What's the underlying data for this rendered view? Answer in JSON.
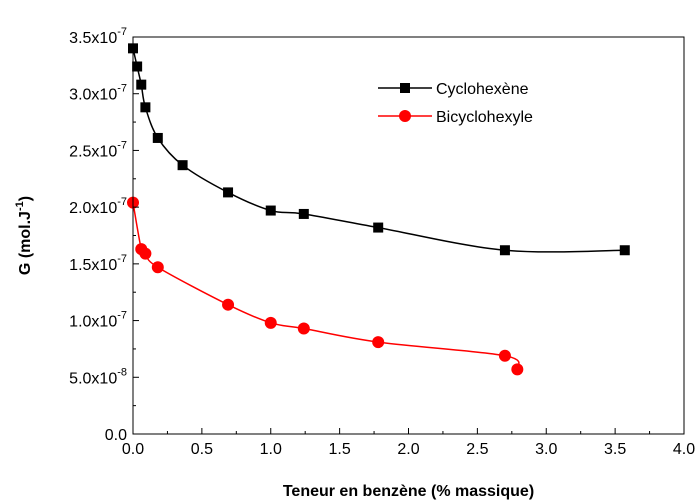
{
  "chart_data": {
    "type": "scatter",
    "xlabel": "Teneur en benzène (% massique)",
    "ylabel_main": "G (mol.J",
    "ylabel_sup": "-1",
    "ylabel_end": ")",
    "xlim": [
      0.0,
      4.0
    ],
    "ylim": [
      0.0,
      3.5e-07
    ],
    "x_ticks": [
      {
        "value": 0.0,
        "label": "0.0"
      },
      {
        "value": 0.5,
        "label": "0.5"
      },
      {
        "value": 1.0,
        "label": "1.0"
      },
      {
        "value": 1.5,
        "label": "1.5"
      },
      {
        "value": 2.0,
        "label": "2.0"
      },
      {
        "value": 2.5,
        "label": "2.5"
      },
      {
        "value": 3.0,
        "label": "3.0"
      },
      {
        "value": 3.5,
        "label": "3.5"
      },
      {
        "value": 4.0,
        "label": "4.0"
      }
    ],
    "y_ticks": [
      {
        "value": 0.0,
        "mant": "0.0",
        "exp": ""
      },
      {
        "value": 5e-08,
        "mant": "5.0x10",
        "exp": "-8"
      },
      {
        "value": 1e-07,
        "mant": "1.0x10",
        "exp": "-7"
      },
      {
        "value": 1.5e-07,
        "mant": "1.5x10",
        "exp": "-7"
      },
      {
        "value": 2e-07,
        "mant": "2.0x10",
        "exp": "-7"
      },
      {
        "value": 2.5e-07,
        "mant": "2.5x10",
        "exp": "-7"
      },
      {
        "value": 3e-07,
        "mant": "3.0x10",
        "exp": "-7"
      },
      {
        "value": 3.5e-07,
        "mant": "3.5x10",
        "exp": "-7"
      }
    ],
    "legend_position": "top-right",
    "series": [
      {
        "name": "Cyclohexène",
        "color": "#000000",
        "marker": "square",
        "x": [
          0.0,
          0.03,
          0.06,
          0.09,
          0.18,
          0.36,
          0.69,
          1.0,
          1.24,
          1.78,
          2.7,
          3.57
        ],
        "y": [
          3.4e-07,
          3.24e-07,
          3.08e-07,
          2.88e-07,
          2.61e-07,
          2.37e-07,
          2.13e-07,
          1.97e-07,
          1.94e-07,
          1.82e-07,
          1.62e-07,
          1.62e-07
        ]
      },
      {
        "name": "Bicyclohexyle",
        "color": "#ff0000",
        "marker": "circle",
        "x": [
          0.0,
          0.06,
          0.09,
          0.18,
          0.69,
          1.0,
          1.24,
          1.78,
          2.7,
          2.79
        ],
        "y": [
          2.04e-07,
          1.63e-07,
          1.59e-07,
          1.47e-07,
          1.14e-07,
          9.8e-08,
          9.3e-08,
          8.1e-08,
          6.9e-08,
          5.7e-08
        ]
      }
    ]
  }
}
